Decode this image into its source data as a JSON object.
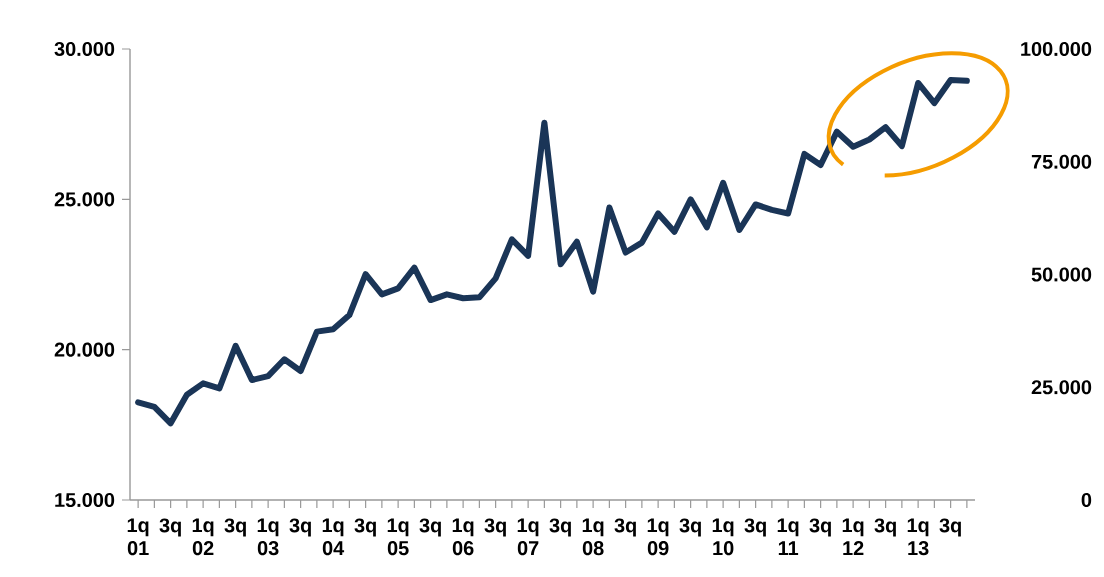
{
  "chart_data": {
    "type": "line",
    "categories": [
      "1q 01",
      null,
      "3q",
      null,
      "1q 02",
      null,
      "3q",
      null,
      "1q 03",
      null,
      "3q",
      null,
      "1q 04",
      null,
      "3q",
      null,
      "1q 05",
      null,
      "3q",
      null,
      "1q 06",
      null,
      "3q",
      null,
      "1q 07",
      null,
      "3q",
      null,
      "1q 08",
      null,
      "3q",
      null,
      "1q 09",
      null,
      "3q",
      null,
      "1q 10",
      null,
      "3q",
      null,
      "1q 11",
      null,
      "3q",
      null,
      "1q 12",
      null,
      "3q",
      null,
      "1q 13",
      null,
      "3q",
      null
    ],
    "series": [
      {
        "color": "#1a3557",
        "values": [
          18250,
          18100,
          17550,
          18500,
          18880,
          18710,
          20130,
          18990,
          19120,
          19680,
          19290,
          20600,
          20680,
          21150,
          22510,
          21840,
          22040,
          22730,
          21650,
          21840,
          21710,
          21740,
          22370,
          23670,
          23120,
          27550,
          22840,
          23590,
          21930,
          24730,
          23230,
          23560,
          24530,
          23920,
          25000,
          24070,
          25550,
          23980,
          24830,
          24650,
          24530,
          26510,
          26140,
          27250,
          26750,
          26990,
          27400,
          26770,
          28870,
          28200,
          28970,
          28940
        ]
      }
    ],
    "ylim": [
      15000,
      30000
    ],
    "yticks": [
      {
        "value": 15000,
        "label": "15.000"
      },
      {
        "value": 20000,
        "label": "20.000"
      },
      {
        "value": 25000,
        "label": "25.000"
      },
      {
        "value": 30000,
        "label": "30.000"
      }
    ],
    "y2lim": [
      0,
      100000
    ],
    "y2ticks": [
      {
        "value": 0,
        "label": "0"
      },
      {
        "value": 25000,
        "label": "25.000"
      },
      {
        "value": 50000,
        "label": "50.000"
      },
      {
        "value": 75000,
        "label": "75.000"
      },
      {
        "value": 100000,
        "label": "100.000"
      }
    ],
    "grid": false,
    "marker": "none",
    "line_style": "solid"
  }
}
